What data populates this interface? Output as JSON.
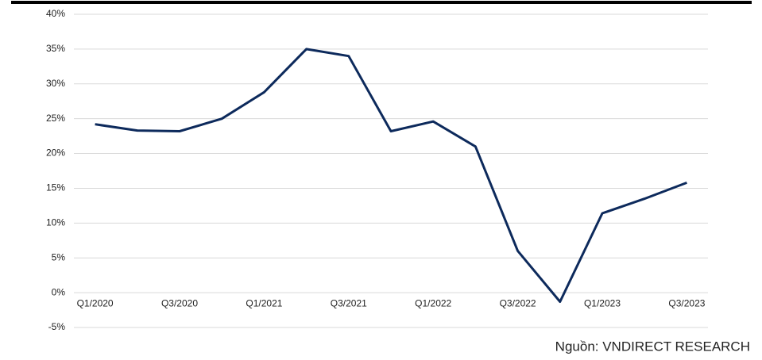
{
  "chart_data": {
    "type": "line",
    "categories": [
      "Q1/2020",
      null,
      "Q3/2020",
      null,
      "Q1/2021",
      null,
      "Q3/2021",
      null,
      "Q1/2022",
      null,
      "Q3/2022",
      null,
      "Q1/2023",
      null,
      "Q3/2023"
    ],
    "series": [
      {
        "name": null,
        "color": "#0d2a5c",
        "values": [
          24.2,
          23.3,
          23.2,
          25.0,
          28.8,
          35.0,
          34.0,
          23.2,
          24.6,
          21.0,
          6.0,
          -1.3,
          11.4,
          13.5,
          15.8
        ]
      }
    ],
    "ylim": [
      -5,
      40
    ],
    "yticks": [
      {
        "value": -5,
        "label": "-5%"
      },
      {
        "value": 0,
        "label": "0%"
      },
      {
        "value": 5,
        "label": "5%"
      },
      {
        "value": 10,
        "label": "10%"
      },
      {
        "value": 15,
        "label": "15%"
      },
      {
        "value": 20,
        "label": "20%"
      },
      {
        "value": 25,
        "label": "25%"
      },
      {
        "value": 30,
        "label": "30%"
      },
      {
        "value": 35,
        "label": "35%"
      },
      {
        "value": 40,
        "label": "40%"
      }
    ],
    "grid": true,
    "source": "Nguồn: VNDIRECT RESEARCH"
  }
}
